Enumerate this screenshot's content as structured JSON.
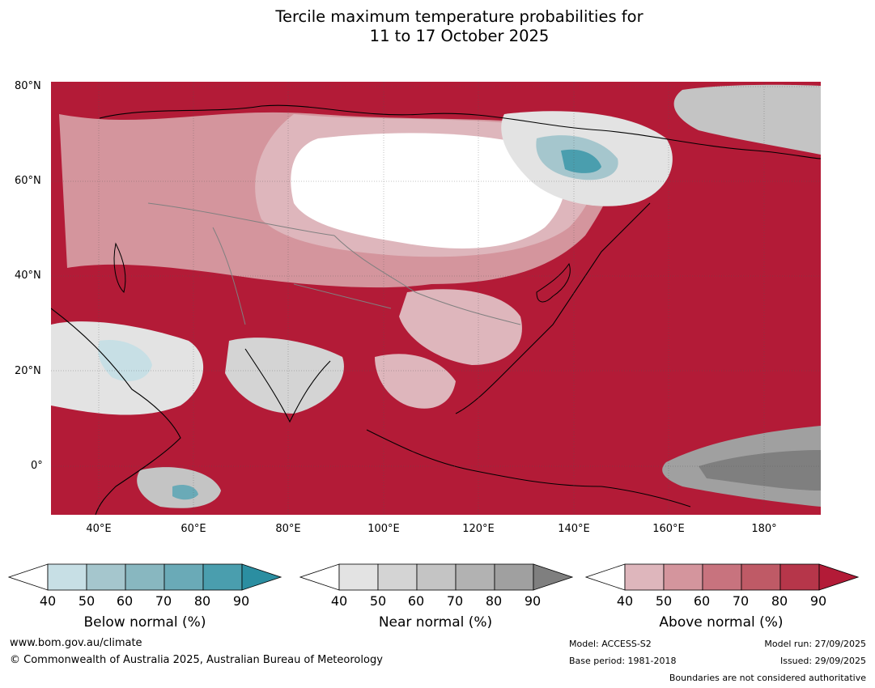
{
  "title": {
    "line1": "Tercile maximum temperature probabilities for",
    "line2": "11 to 17 October 2025"
  },
  "map": {
    "lat_labels": [
      "80°N",
      "60°N",
      "40°N",
      "20°N",
      "0°"
    ],
    "lon_labels": [
      "40°E",
      "60°E",
      "80°E",
      "100°E",
      "120°E",
      "140°E",
      "160°E",
      "180°"
    ]
  },
  "legends": {
    "below": {
      "title": "Below normal (%)",
      "ticks": [
        "40",
        "50",
        "60",
        "70",
        "80",
        "90"
      ],
      "colors": [
        "#c7dfe5",
        "#a5c6cd",
        "#88b7c0",
        "#6aaab7",
        "#4a9eae",
        "#2b8ea1"
      ]
    },
    "near": {
      "title": "Near normal (%)",
      "ticks": [
        "40",
        "50",
        "60",
        "70",
        "80",
        "90"
      ],
      "colors": [
        "#e3e3e3",
        "#d4d4d4",
        "#c4c4c4",
        "#b2b2b2",
        "#a0a0a0",
        "#7f7f7f"
      ]
    },
    "above": {
      "title": "Above normal (%)",
      "ticks": [
        "40",
        "50",
        "60",
        "70",
        "80",
        "90"
      ],
      "colors": [
        "#deb6bc",
        "#d4959d",
        "#c8737e",
        "#bf5a66",
        "#b6364a",
        "#b31b37"
      ]
    }
  },
  "footer": {
    "website": "www.bom.gov.au/climate",
    "copyright": "© Commonwealth of Australia 2025, Australian Bureau of Meteorology",
    "model": "Model: ACCESS-S2",
    "base_period": "Base period: 1981-2018",
    "model_run": "Model run: 27/09/2025",
    "issued": "Issued: 29/09/2025",
    "disclaimer": "Boundaries are not considered authoritative"
  }
}
